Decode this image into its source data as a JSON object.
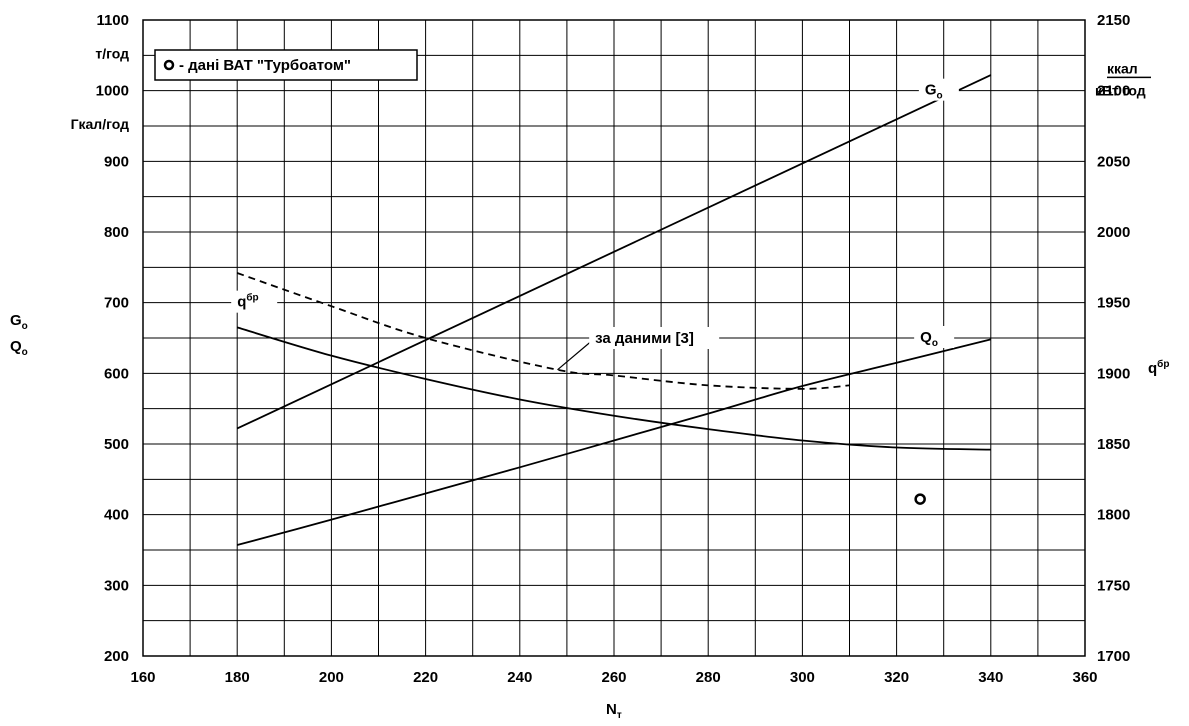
{
  "chart_data": {
    "type": "line",
    "xlabel": "N",
    "xlabel_sub": "т",
    "xlim": [
      160,
      360
    ],
    "x_ticks": [
      160,
      180,
      200,
      220,
      240,
      260,
      280,
      300,
      320,
      340,
      360
    ],
    "y_left": {
      "lim": [
        200,
        1100
      ],
      "ticks": [
        200,
        300,
        400,
        500,
        600,
        700,
        800,
        900,
        1000,
        1100
      ],
      "units": [
        "т/год",
        "Гкал/год"
      ],
      "label_lines": [
        {
          "base": "G",
          "sub": "о"
        },
        {
          "base": "Q",
          "sub": "о"
        }
      ]
    },
    "y_right": {
      "lim": [
        1700,
        2150
      ],
      "ticks": [
        1700,
        1750,
        1800,
        1850,
        1900,
        1950,
        2000,
        2050,
        2100,
        2150
      ],
      "unit_numerator": "ккал",
      "unit_denominator": "кВт год",
      "label": {
        "base": "q",
        "sup": "бр"
      }
    },
    "legend": {
      "text": "- дані ВАТ \"Турбоатом\"",
      "position": "top-left"
    },
    "grid": true,
    "series": [
      {
        "label": {
          "base": "G",
          "sub": "о"
        },
        "axis": "left",
        "style": "solid",
        "x": [
          180,
          340
        ],
        "y": [
          522,
          1022
        ]
      },
      {
        "label": {
          "base": "Q",
          "sub": "о"
        },
        "axis": "left",
        "style": "solid",
        "x": [
          180,
          200,
          220,
          240,
          260,
          280,
          300,
          320,
          340
        ],
        "y": [
          357,
          393,
          430,
          467,
          505,
          543,
          582,
          615,
          648
        ]
      },
      {
        "label": {
          "base": "q",
          "sup": "бр"
        },
        "axis": "left",
        "style": "solid",
        "x": [
          180,
          200,
          220,
          240,
          260,
          280,
          300,
          320,
          340
        ],
        "y": [
          665,
          625,
          592,
          563,
          540,
          521,
          505,
          495,
          492
        ]
      },
      {
        "label": {
          "base": "за даними [3]"
        },
        "axis": "left",
        "style": "dashed",
        "x": [
          180,
          200,
          220,
          248,
          260,
          280,
          300,
          310
        ],
        "y": [
          742,
          695,
          650,
          605,
          597,
          583,
          578,
          583
        ]
      },
      {
        "label": {
          "base": ""
        },
        "axis": "left",
        "style": "marker",
        "x": [
          325
        ],
        "y": [
          422
        ]
      }
    ]
  }
}
